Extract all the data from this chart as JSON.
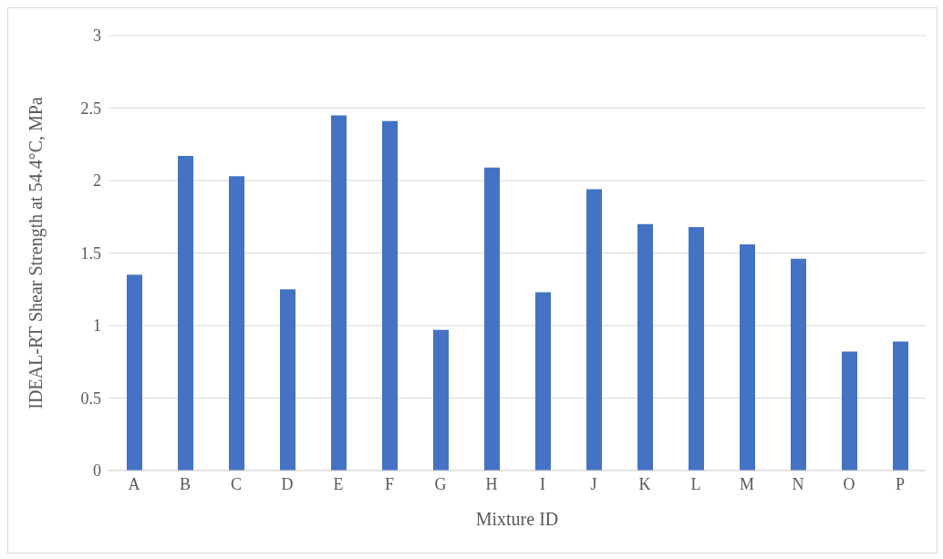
{
  "chart_data": {
    "type": "bar",
    "xlabel": "Mixture ID",
    "ylabel": "IDEAL-RT Shear Strength at 54.4°C, MPa",
    "categories": [
      "A",
      "B",
      "C",
      "D",
      "E",
      "F",
      "G",
      "H",
      "I",
      "J",
      "K",
      "L",
      "M",
      "N",
      "O",
      "P"
    ],
    "values": [
      1.35,
      2.17,
      2.03,
      1.25,
      2.45,
      2.41,
      0.97,
      2.09,
      1.23,
      1.94,
      1.7,
      1.68,
      1.56,
      1.46,
      0.82,
      0.89
    ],
    "color": "#4472c4",
    "ylim": [
      0,
      3
    ],
    "yticks": [
      0,
      0.5,
      1,
      1.5,
      2,
      2.5,
      3
    ],
    "grid": "y"
  }
}
